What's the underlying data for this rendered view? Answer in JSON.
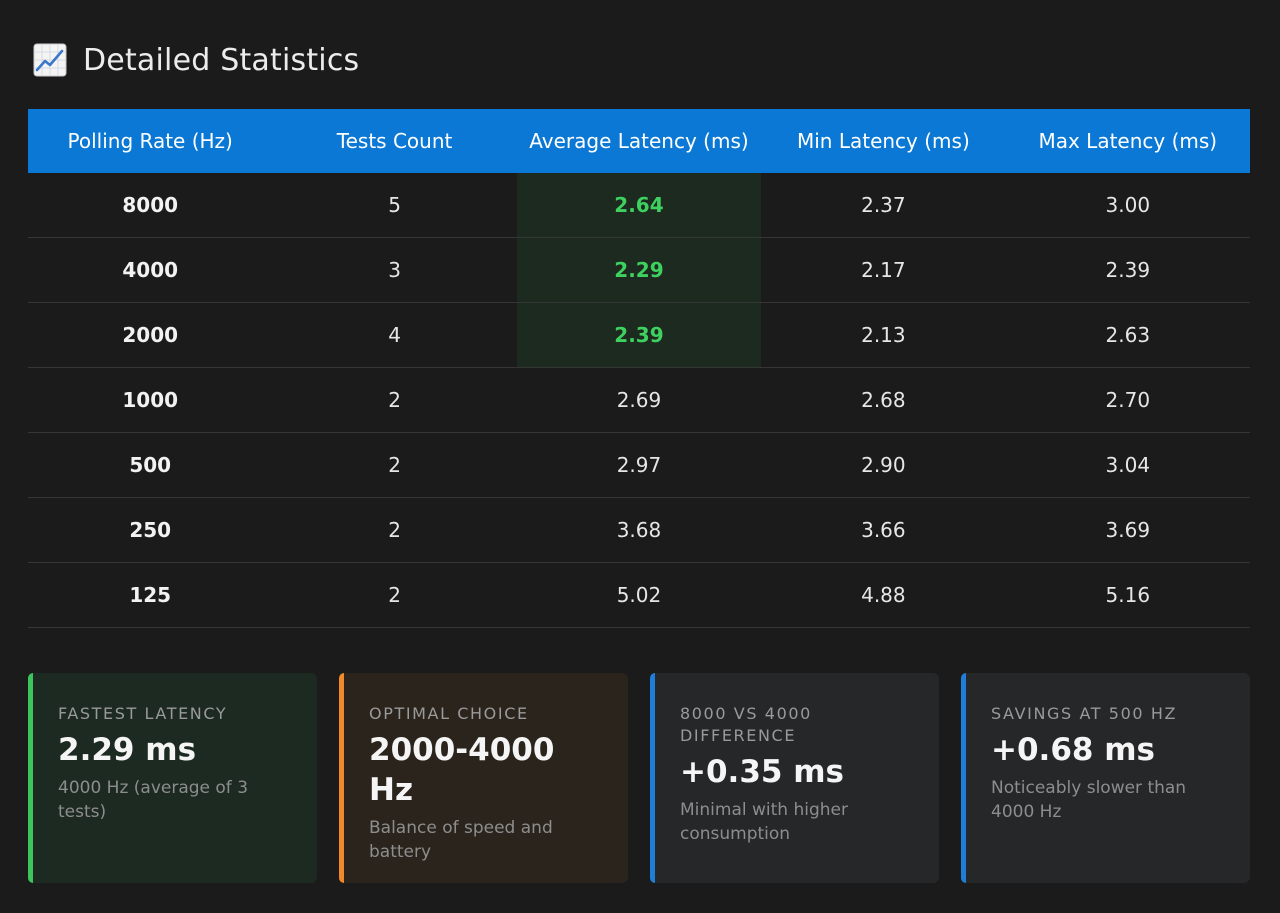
{
  "section": {
    "icon": "chart-increasing-icon",
    "title": "Detailed Statistics"
  },
  "colors": {
    "header_bg": "#0a78d4",
    "best_text": "#3fd160",
    "best_cell_bg": "#1c2a1f",
    "card_green": "#3ec45c",
    "card_orange": "#f0892a",
    "card_blue": "#1f7fd8"
  },
  "table": {
    "headers": [
      "Polling Rate (Hz)",
      "Tests Count",
      "Average Latency (ms)",
      "Min Latency (ms)",
      "Max Latency (ms)"
    ],
    "rows": [
      {
        "rate": "8000",
        "count": "5",
        "avg": "2.64",
        "min": "2.37",
        "max": "3.00",
        "highlight": true
      },
      {
        "rate": "4000",
        "count": "3",
        "avg": "2.29",
        "min": "2.17",
        "max": "2.39",
        "highlight": true
      },
      {
        "rate": "2000",
        "count": "4",
        "avg": "2.39",
        "min": "2.13",
        "max": "2.63",
        "highlight": true
      },
      {
        "rate": "1000",
        "count": "2",
        "avg": "2.69",
        "min": "2.68",
        "max": "2.70",
        "highlight": false
      },
      {
        "rate": "500",
        "count": "2",
        "avg": "2.97",
        "min": "2.90",
        "max": "3.04",
        "highlight": false
      },
      {
        "rate": "250",
        "count": "2",
        "avg": "3.68",
        "min": "3.66",
        "max": "3.69",
        "highlight": false
      },
      {
        "rate": "125",
        "count": "2",
        "avg": "5.02",
        "min": "4.88",
        "max": "5.16",
        "highlight": false
      }
    ]
  },
  "cards": [
    {
      "label": "Fastest Latency",
      "value": "2.29 ms",
      "desc": "4000 Hz (average of 3 tests)",
      "accent": "green"
    },
    {
      "label": "Optimal Choice",
      "value": "2000-4000 Hz",
      "desc": "Balance of speed and battery",
      "accent": "orange"
    },
    {
      "label": "8000 vs 4000 Difference",
      "value": "+0.35 ms",
      "desc": "Minimal with higher consumption",
      "accent": "blue"
    },
    {
      "label": "Savings at 500 Hz",
      "value": "+0.68 ms",
      "desc": "Noticeably slower than 4000 Hz",
      "accent": "blue"
    }
  ]
}
